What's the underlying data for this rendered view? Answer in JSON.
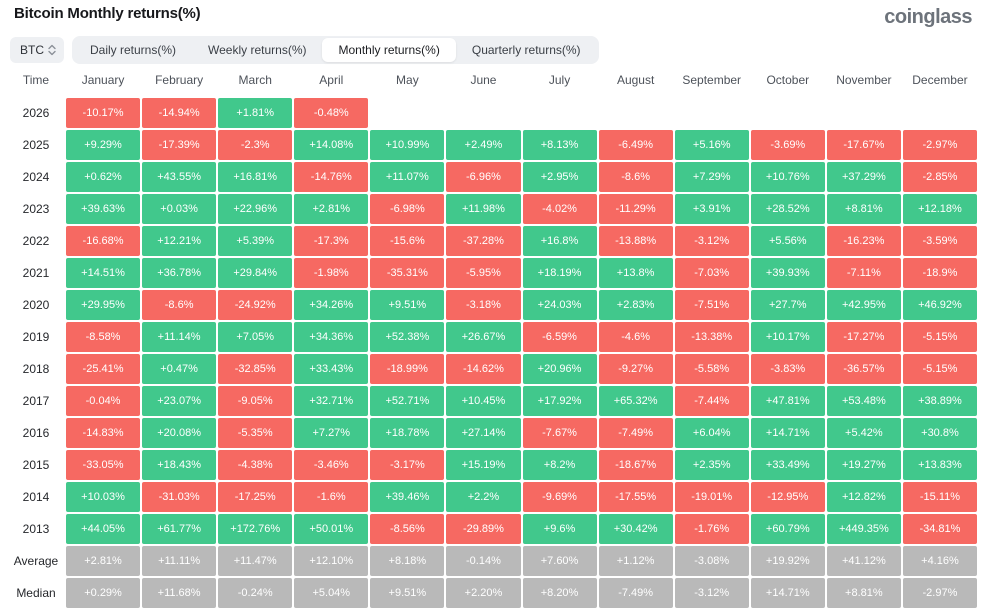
{
  "header": {
    "title": "Bitcoin Monthly returns(%)",
    "logo": "coinglass"
  },
  "controls": {
    "symbol": "BTC",
    "symbol_icon": "updown-chevron-icon",
    "tabs": [
      {
        "label": "Daily returns(%)",
        "active": false
      },
      {
        "label": "Weekly returns(%)",
        "active": false
      },
      {
        "label": "Monthly returns(%)",
        "active": true
      },
      {
        "label": "Quarterly returns(%)",
        "active": false
      }
    ]
  },
  "colors": {
    "positive": "#41c88c",
    "negative": "#f66962",
    "neutral": "#b9b9b9"
  },
  "table": {
    "columns": [
      "Time",
      "January",
      "February",
      "March",
      "April",
      "May",
      "June",
      "July",
      "August",
      "September",
      "October",
      "November",
      "December"
    ],
    "rows": [
      {
        "label": "2026",
        "type": "year",
        "values": [
          "-10.17%",
          "-14.94%",
          "+1.81%",
          "-0.48%",
          null,
          null,
          null,
          null,
          null,
          null,
          null,
          null
        ]
      },
      {
        "label": "2025",
        "type": "year",
        "values": [
          "+9.29%",
          "-17.39%",
          "-2.3%",
          "+14.08%",
          "+10.99%",
          "+2.49%",
          "+8.13%",
          "-6.49%",
          "+5.16%",
          "-3.69%",
          "-17.67%",
          "-2.97%"
        ]
      },
      {
        "label": "2024",
        "type": "year",
        "values": [
          "+0.62%",
          "+43.55%",
          "+16.81%",
          "-14.76%",
          "+11.07%",
          "-6.96%",
          "+2.95%",
          "-8.6%",
          "+7.29%",
          "+10.76%",
          "+37.29%",
          "-2.85%"
        ]
      },
      {
        "label": "2023",
        "type": "year",
        "values": [
          "+39.63%",
          "+0.03%",
          "+22.96%",
          "+2.81%",
          "-6.98%",
          "+11.98%",
          "-4.02%",
          "-11.29%",
          "+3.91%",
          "+28.52%",
          "+8.81%",
          "+12.18%"
        ]
      },
      {
        "label": "2022",
        "type": "year",
        "values": [
          "-16.68%",
          "+12.21%",
          "+5.39%",
          "-17.3%",
          "-15.6%",
          "-37.28%",
          "+16.8%",
          "-13.88%",
          "-3.12%",
          "+5.56%",
          "-16.23%",
          "-3.59%"
        ]
      },
      {
        "label": "2021",
        "type": "year",
        "values": [
          "+14.51%",
          "+36.78%",
          "+29.84%",
          "-1.98%",
          "-35.31%",
          "-5.95%",
          "+18.19%",
          "+13.8%",
          "-7.03%",
          "+39.93%",
          "-7.11%",
          "-18.9%"
        ]
      },
      {
        "label": "2020",
        "type": "year",
        "values": [
          "+29.95%",
          "-8.6%",
          "-24.92%",
          "+34.26%",
          "+9.51%",
          "-3.18%",
          "+24.03%",
          "+2.83%",
          "-7.51%",
          "+27.7%",
          "+42.95%",
          "+46.92%"
        ]
      },
      {
        "label": "2019",
        "type": "year",
        "values": [
          "-8.58%",
          "+11.14%",
          "+7.05%",
          "+34.36%",
          "+52.38%",
          "+26.67%",
          "-6.59%",
          "-4.6%",
          "-13.38%",
          "+10.17%",
          "-17.27%",
          "-5.15%"
        ]
      },
      {
        "label": "2018",
        "type": "year",
        "values": [
          "-25.41%",
          "+0.47%",
          "-32.85%",
          "+33.43%",
          "-18.99%",
          "-14.62%",
          "+20.96%",
          "-9.27%",
          "-5.58%",
          "-3.83%",
          "-36.57%",
          "-5.15%"
        ]
      },
      {
        "label": "2017",
        "type": "year",
        "values": [
          "-0.04%",
          "+23.07%",
          "-9.05%",
          "+32.71%",
          "+52.71%",
          "+10.45%",
          "+17.92%",
          "+65.32%",
          "-7.44%",
          "+47.81%",
          "+53.48%",
          "+38.89%"
        ]
      },
      {
        "label": "2016",
        "type": "year",
        "values": [
          "-14.83%",
          "+20.08%",
          "-5.35%",
          "+7.27%",
          "+18.78%",
          "+27.14%",
          "-7.67%",
          "-7.49%",
          "+6.04%",
          "+14.71%",
          "+5.42%",
          "+30.8%"
        ]
      },
      {
        "label": "2015",
        "type": "year",
        "values": [
          "-33.05%",
          "+18.43%",
          "-4.38%",
          "-3.46%",
          "-3.17%",
          "+15.19%",
          "+8.2%",
          "-18.67%",
          "+2.35%",
          "+33.49%",
          "+19.27%",
          "+13.83%"
        ]
      },
      {
        "label": "2014",
        "type": "year",
        "values": [
          "+10.03%",
          "-31.03%",
          "-17.25%",
          "-1.6%",
          "+39.46%",
          "+2.2%",
          "-9.69%",
          "-17.55%",
          "-19.01%",
          "-12.95%",
          "+12.82%",
          "-15.11%"
        ]
      },
      {
        "label": "2013",
        "type": "year",
        "values": [
          "+44.05%",
          "+61.77%",
          "+172.76%",
          "+50.01%",
          "-8.56%",
          "-29.89%",
          "+9.6%",
          "+30.42%",
          "-1.76%",
          "+60.79%",
          "+449.35%",
          "-34.81%"
        ]
      },
      {
        "label": "Average",
        "type": "summary",
        "values": [
          "+2.81%",
          "+11.11%",
          "+11.47%",
          "+12.10%",
          "+8.18%",
          "-0.14%",
          "+7.60%",
          "+1.12%",
          "-3.08%",
          "+19.92%",
          "+41.12%",
          "+4.16%"
        ]
      },
      {
        "label": "Median",
        "type": "summary",
        "values": [
          "+0.29%",
          "+11.68%",
          "-0.24%",
          "+5.04%",
          "+9.51%",
          "+2.20%",
          "+8.20%",
          "-7.49%",
          "-3.12%",
          "+14.71%",
          "+8.81%",
          "-2.97%"
        ]
      }
    ]
  }
}
